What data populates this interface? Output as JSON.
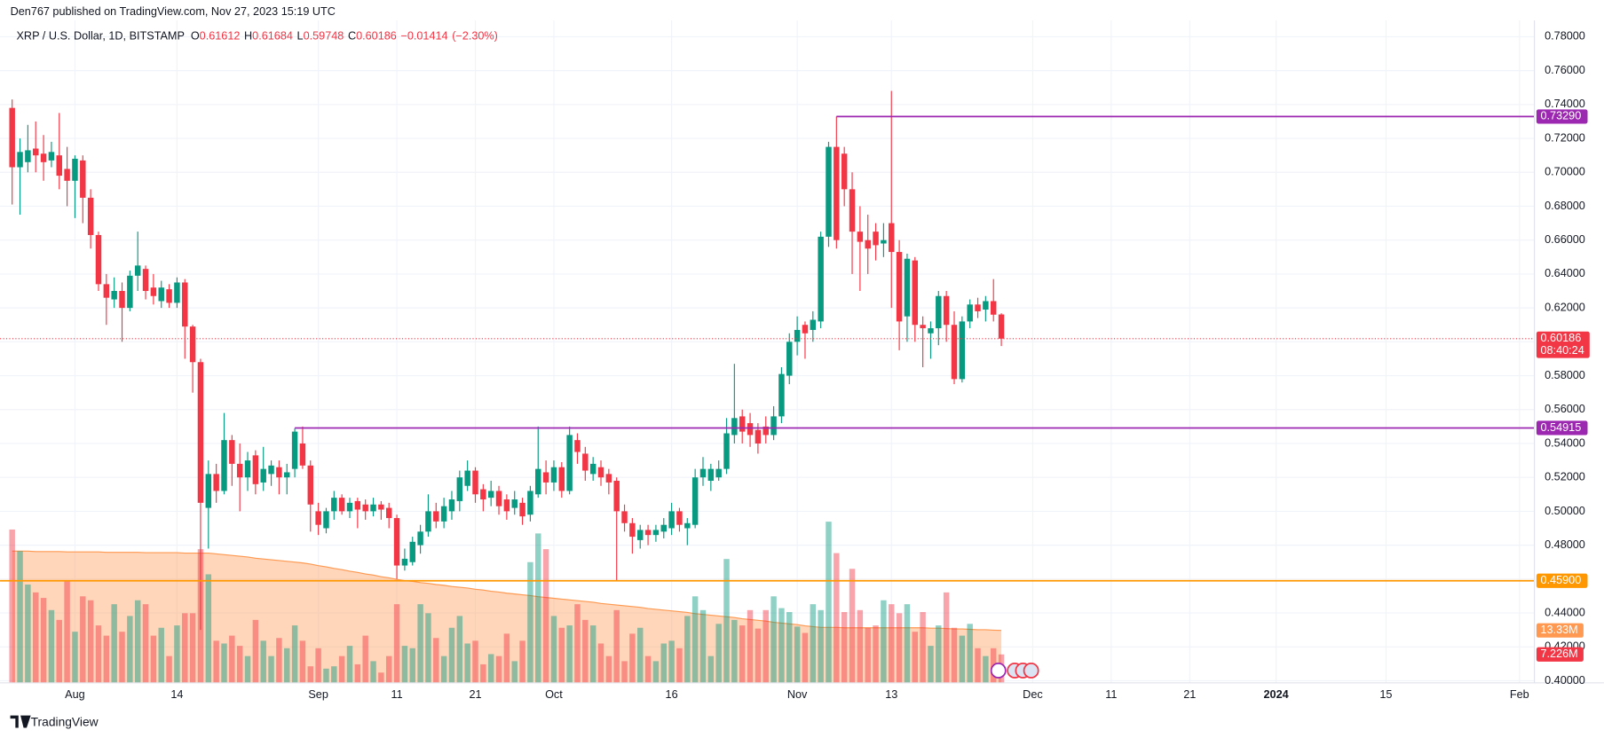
{
  "header": "Den767 published on TradingView.com, Nov 27, 2023 15:19 UTC",
  "footer": "TradingView",
  "chart_data": {
    "type": "candlestick",
    "title": "XRP / U.S. Dollar, 1D, BITSTAMP",
    "legend": {
      "open_label": "O",
      "high_label": "H",
      "low_label": "L",
      "close_label": "C",
      "change": "−0.01414",
      "change_percent": "(−2.30%)"
    },
    "up_color": "#089981",
    "down_color": "#f23645",
    "x": [
      205,
      206,
      207,
      208,
      209,
      210,
      211,
      212,
      213,
      214,
      215,
      216,
      217,
      218,
      219,
      220,
      221,
      222,
      223,
      224,
      225,
      226,
      227,
      228,
      229,
      230,
      231,
      232,
      233,
      234,
      235,
      236,
      237,
      238,
      239,
      240,
      241,
      242,
      243,
      244,
      245,
      246,
      247,
      248,
      249,
      250,
      251,
      252,
      253,
      254,
      255,
      256,
      257,
      258,
      259,
      260,
      261,
      262,
      263,
      264,
      265,
      266,
      267,
      268,
      269,
      270,
      271,
      272,
      273,
      274,
      275,
      276,
      277,
      278,
      279,
      280,
      281,
      282,
      283,
      284,
      285,
      286,
      287,
      288,
      289,
      290,
      291,
      292,
      293,
      294,
      295,
      296,
      297,
      298,
      299,
      300,
      301,
      302,
      303,
      304,
      305,
      306,
      307,
      308,
      309,
      310,
      311,
      312,
      313,
      314,
      315,
      316,
      317,
      318,
      319,
      320,
      321,
      322,
      323,
      324,
      325,
      326,
      327,
      328,
      329,
      330,
      331
    ],
    "ohlc": [
      [
        0.738,
        0.743,
        0.681,
        0.703
      ],
      [
        0.703,
        0.72,
        0.675,
        0.712
      ],
      [
        0.706,
        0.728,
        0.7,
        0.713
      ],
      [
        0.714,
        0.73,
        0.7,
        0.71
      ],
      [
        0.711,
        0.722,
        0.695,
        0.706
      ],
      [
        0.707,
        0.718,
        0.703,
        0.712
      ],
      [
        0.71,
        0.735,
        0.69,
        0.698
      ],
      [
        0.702,
        0.715,
        0.68,
        0.695
      ],
      [
        0.695,
        0.71,
        0.673,
        0.708
      ],
      [
        0.707,
        0.71,
        0.67,
        0.685
      ],
      [
        0.685,
        0.69,
        0.655,
        0.663
      ],
      [
        0.663,
        0.665,
        0.63,
        0.634
      ],
      [
        0.634,
        0.64,
        0.61,
        0.626
      ],
      [
        0.625,
        0.638,
        0.62,
        0.63
      ],
      [
        0.63,
        0.635,
        0.6,
        0.62
      ],
      [
        0.62,
        0.642,
        0.618,
        0.639
      ],
      [
        0.639,
        0.665,
        0.63,
        0.645
      ],
      [
        0.643,
        0.645,
        0.625,
        0.63
      ],
      [
        0.632,
        0.64,
        0.622,
        0.627
      ],
      [
        0.624,
        0.636,
        0.62,
        0.632
      ],
      [
        0.631,
        0.634,
        0.62,
        0.623
      ],
      [
        0.623,
        0.638,
        0.62,
        0.635
      ],
      [
        0.635,
        0.637,
        0.59,
        0.609
      ],
      [
        0.609,
        0.61,
        0.57,
        0.588
      ],
      [
        0.588,
        0.59,
        0.43,
        0.505
      ],
      [
        0.502,
        0.53,
        0.478,
        0.522
      ],
      [
        0.522,
        0.528,
        0.505,
        0.512
      ],
      [
        0.512,
        0.558,
        0.51,
        0.542
      ],
      [
        0.542,
        0.545,
        0.515,
        0.528
      ],
      [
        0.528,
        0.54,
        0.5,
        0.52
      ],
      [
        0.52,
        0.535,
        0.512,
        0.53
      ],
      [
        0.533,
        0.536,
        0.51,
        0.516
      ],
      [
        0.517,
        0.538,
        0.512,
        0.525
      ],
      [
        0.522,
        0.53,
        0.515,
        0.527
      ],
      [
        0.526,
        0.53,
        0.51,
        0.52
      ],
      [
        0.52,
        0.528,
        0.51,
        0.523
      ],
      [
        0.525,
        0.549,
        0.52,
        0.547
      ],
      [
        0.54,
        0.55,
        0.525,
        0.527
      ],
      [
        0.527,
        0.53,
        0.488,
        0.504
      ],
      [
        0.5,
        0.505,
        0.486,
        0.492
      ],
      [
        0.49,
        0.502,
        0.487,
        0.5
      ],
      [
        0.5,
        0.512,
        0.495,
        0.508
      ],
      [
        0.508,
        0.51,
        0.498,
        0.5
      ],
      [
        0.5,
        0.508,
        0.496,
        0.505
      ],
      [
        0.506,
        0.508,
        0.49,
        0.501
      ],
      [
        0.504,
        0.507,
        0.495,
        0.5
      ],
      [
        0.5,
        0.508,
        0.497,
        0.504
      ],
      [
        0.504,
        0.506,
        0.495,
        0.501
      ],
      [
        0.502,
        0.505,
        0.49,
        0.496
      ],
      [
        0.496,
        0.498,
        0.46,
        0.468
      ],
      [
        0.468,
        0.478,
        0.465,
        0.472
      ],
      [
        0.47,
        0.485,
        0.468,
        0.482
      ],
      [
        0.48,
        0.492,
        0.475,
        0.488
      ],
      [
        0.488,
        0.51,
        0.485,
        0.5
      ],
      [
        0.5,
        0.505,
        0.49,
        0.494
      ],
      [
        0.494,
        0.508,
        0.49,
        0.503
      ],
      [
        0.5,
        0.512,
        0.495,
        0.507
      ],
      [
        0.506,
        0.524,
        0.5,
        0.52
      ],
      [
        0.515,
        0.53,
        0.512,
        0.524
      ],
      [
        0.524,
        0.526,
        0.505,
        0.51
      ],
      [
        0.513,
        0.516,
        0.5,
        0.507
      ],
      [
        0.508,
        0.518,
        0.503,
        0.512
      ],
      [
        0.512,
        0.515,
        0.498,
        0.503
      ],
      [
        0.507,
        0.51,
        0.495,
        0.5
      ],
      [
        0.502,
        0.512,
        0.498,
        0.507
      ],
      [
        0.505,
        0.508,
        0.492,
        0.497
      ],
      [
        0.498,
        0.515,
        0.494,
        0.512
      ],
      [
        0.51,
        0.55,
        0.508,
        0.525
      ],
      [
        0.523,
        0.53,
        0.51,
        0.517
      ],
      [
        0.517,
        0.53,
        0.512,
        0.526
      ],
      [
        0.526,
        0.529,
        0.508,
        0.512
      ],
      [
        0.512,
        0.55,
        0.51,
        0.545
      ],
      [
        0.542,
        0.546,
        0.528,
        0.535
      ],
      [
        0.534,
        0.538,
        0.518,
        0.524
      ],
      [
        0.522,
        0.532,
        0.518,
        0.528
      ],
      [
        0.526,
        0.53,
        0.515,
        0.52
      ],
      [
        0.522,
        0.525,
        0.51,
        0.517
      ],
      [
        0.518,
        0.52,
        0.459,
        0.5
      ],
      [
        0.5,
        0.504,
        0.488,
        0.493
      ],
      [
        0.493,
        0.496,
        0.475,
        0.485
      ],
      [
        0.483,
        0.492,
        0.478,
        0.489
      ],
      [
        0.489,
        0.492,
        0.48,
        0.486
      ],
      [
        0.486,
        0.492,
        0.482,
        0.489
      ],
      [
        0.488,
        0.496,
        0.484,
        0.492
      ],
      [
        0.49,
        0.505,
        0.486,
        0.5
      ],
      [
        0.5,
        0.502,
        0.488,
        0.492
      ],
      [
        0.49,
        0.496,
        0.48,
        0.493
      ],
      [
        0.492,
        0.525,
        0.49,
        0.52
      ],
      [
        0.52,
        0.532,
        0.515,
        0.525
      ],
      [
        0.518,
        0.528,
        0.512,
        0.525
      ],
      [
        0.52,
        0.53,
        0.518,
        0.525
      ],
      [
        0.525,
        0.555,
        0.522,
        0.546
      ],
      [
        0.545,
        0.587,
        0.54,
        0.555
      ],
      [
        0.556,
        0.56,
        0.54,
        0.547
      ],
      [
        0.552,
        0.558,
        0.538,
        0.545
      ],
      [
        0.548,
        0.552,
        0.534,
        0.54
      ],
      [
        0.55,
        0.556,
        0.54,
        0.545
      ],
      [
        0.545,
        0.562,
        0.542,
        0.556
      ],
      [
        0.556,
        0.585,
        0.552,
        0.581
      ],
      [
        0.58,
        0.605,
        0.575,
        0.6
      ],
      [
        0.6,
        0.615,
        0.592,
        0.607
      ],
      [
        0.61,
        0.612,
        0.59,
        0.605
      ],
      [
        0.607,
        0.618,
        0.6,
        0.613
      ],
      [
        0.612,
        0.665,
        0.608,
        0.662
      ],
      [
        0.662,
        0.718,
        0.656,
        0.715
      ],
      [
        0.715,
        0.733,
        0.655,
        0.66
      ],
      [
        0.711,
        0.715,
        0.68,
        0.69
      ],
      [
        0.69,
        0.7,
        0.64,
        0.665
      ],
      [
        0.665,
        0.68,
        0.63,
        0.659
      ],
      [
        0.66,
        0.675,
        0.64,
        0.655
      ],
      [
        0.665,
        0.67,
        0.648,
        0.657
      ],
      [
        0.658,
        0.67,
        0.65,
        0.66
      ],
      [
        0.67,
        0.748,
        0.62,
        0.653
      ],
      [
        0.653,
        0.66,
        0.595,
        0.612
      ],
      [
        0.615,
        0.652,
        0.6,
        0.649
      ],
      [
        0.648,
        0.65,
        0.6,
        0.61
      ],
      [
        0.61,
        0.615,
        0.585,
        0.608
      ],
      [
        0.605,
        0.612,
        0.59,
        0.608
      ],
      [
        0.608,
        0.63,
        0.598,
        0.627
      ],
      [
        0.627,
        0.63,
        0.6,
        0.61
      ],
      [
        0.61,
        0.618,
        0.575,
        0.578
      ],
      [
        0.578,
        0.615,
        0.576,
        0.612
      ],
      [
        0.612,
        0.625,
        0.608,
        0.622
      ],
      [
        0.622,
        0.626,
        0.614,
        0.618
      ],
      [
        0.619,
        0.627,
        0.612,
        0.624
      ],
      [
        0.624,
        0.637,
        0.612,
        0.616
      ],
      [
        0.61612,
        0.61684,
        0.59748,
        0.60186
      ]
    ],
    "volume": {
      "values": [
        39,
        33.5,
        25,
        23,
        21.6,
        18.5,
        16,
        26,
        13,
        22,
        21,
        14.6,
        12,
        20,
        13,
        17,
        21,
        20,
        12,
        14,
        6.8,
        14.6,
        17.7,
        17.7,
        34,
        27.6,
        10.7,
        10,
        12,
        9.4,
        6.8,
        16,
        10.7,
        6.8,
        11.4,
        8.8,
        14.6,
        10.7,
        4.2,
        8.8,
        3.6,
        4.2,
        6.8,
        9.4,
        4.7,
        12,
        5.5,
        2.6,
        6.8,
        20,
        9.4,
        8.8,
        20,
        17.7,
        11.4,
        6.8,
        14,
        17,
        10,
        10.7,
        4.7,
        7.3,
        6.8,
        12.5,
        5.5,
        10.7,
        30.7,
        38,
        34,
        17,
        14,
        14.6,
        20,
        16,
        14.6,
        10,
        6.8,
        18.5,
        5.5,
        12.5,
        14,
        6.8,
        5.5,
        10,
        10.7,
        8.8,
        17,
        22,
        18.5,
        6.8,
        15,
        31.5,
        16,
        14.6,
        18.5,
        13.8,
        18.5,
        22,
        19,
        18,
        14.3,
        12.7,
        20,
        18.5,
        41,
        33,
        18,
        29,
        18.5,
        14,
        14.6,
        21,
        20,
        17.7,
        20,
        13,
        18,
        9.4,
        14.6,
        23,
        14,
        12,
        15,
        8.8,
        6.8,
        8.8,
        7.226
      ],
      "last_label": "7.226M",
      "label_color": "#f23645"
    },
    "volume_ma": {
      "values": [
        33.5,
        33.5,
        33.5,
        33.4,
        33.4,
        33.4,
        33.4,
        33.3,
        33.3,
        33.3,
        33.3,
        33.3,
        33.2,
        33.2,
        33.2,
        33.2,
        33.2,
        33.1,
        33.1,
        33.1,
        33.1,
        33.1,
        33.0,
        33.0,
        33.0,
        33.0,
        32.8,
        32.6,
        32.4,
        32.2,
        32.0,
        31.7,
        31.5,
        31.3,
        31.1,
        30.9,
        30.7,
        30.5,
        30.2,
        29.8,
        29.5,
        29.1,
        28.8,
        28.4,
        28.1,
        27.7,
        27.4,
        27.0,
        26.7,
        26.3,
        26.0,
        25.8,
        25.5,
        25.3,
        25.0,
        24.8,
        24.5,
        24.3,
        24.1,
        23.8,
        23.6,
        23.3,
        23.1,
        22.8,
        22.6,
        22.4,
        22.2,
        21.9,
        21.7,
        21.5,
        21.3,
        21.1,
        20.9,
        20.7,
        20.5,
        20.2,
        20.0,
        19.8,
        19.6,
        19.4,
        19.2,
        18.9,
        18.7,
        18.5,
        18.3,
        18.1,
        17.9,
        17.6,
        17.4,
        17.2,
        17.0,
        16.8,
        16.6,
        16.3,
        16.1,
        15.9,
        15.7,
        15.4,
        15.2,
        15.0,
        14.8,
        14.5,
        14.3,
        14.1,
        14.1,
        14.1,
        14.0,
        14.0,
        14.0,
        14.0,
        14.0,
        14.0,
        14.0,
        14.0,
        14.0,
        14.0,
        14.0,
        13.9,
        13.9,
        13.8,
        13.7,
        13.7,
        13.6,
        13.5,
        13.5,
        13.4,
        13.33
      ],
      "color": "#ff9850",
      "last_label": "13.33M"
    },
    "xlim": [
      204.5,
      398.9
    ],
    "xticks": [
      {
        "value": 213,
        "label": "Aug"
      },
      {
        "value": 226,
        "label": "14"
      },
      {
        "value": 244,
        "label": "Sep"
      },
      {
        "value": 254,
        "label": "11"
      },
      {
        "value": 264,
        "label": "21"
      },
      {
        "value": 274,
        "label": "Oct"
      },
      {
        "value": 289,
        "label": "16"
      },
      {
        "value": 305,
        "label": "Nov"
      },
      {
        "value": 317,
        "label": "13"
      },
      {
        "value": 335,
        "label": "Dec"
      },
      {
        "value": 345,
        "label": "11"
      },
      {
        "value": 355,
        "label": "21"
      },
      {
        "value": 366,
        "label": "2024",
        "bold": true
      },
      {
        "value": 380,
        "label": "15"
      },
      {
        "value": 397,
        "label": "Feb"
      }
    ],
    "ylim": [
      0.3988,
      0.7884
    ],
    "yticks": [
      {
        "value": 0.4,
        "label": "0.40000"
      },
      {
        "value": 0.42,
        "label": "0.42000"
      },
      {
        "value": 0.44,
        "label": "0.44000"
      },
      {
        "value": 0.46,
        "label": "0.46000"
      },
      {
        "value": 0.48,
        "label": "0.48000"
      },
      {
        "value": 0.5,
        "label": "0.50000"
      },
      {
        "value": 0.52,
        "label": "0.52000"
      },
      {
        "value": 0.54,
        "label": "0.54000"
      },
      {
        "value": 0.56,
        "label": "0.56000"
      },
      {
        "value": 0.58,
        "label": "0.58000"
      },
      {
        "value": 0.6,
        "label": "0.60000"
      },
      {
        "value": 0.62,
        "label": "0.62000"
      },
      {
        "value": 0.64,
        "label": "0.64000"
      },
      {
        "value": 0.66,
        "label": "0.66000"
      },
      {
        "value": 0.68,
        "label": "0.68000"
      },
      {
        "value": 0.7,
        "label": "0.70000"
      },
      {
        "value": 0.72,
        "label": "0.72000"
      },
      {
        "value": 0.74,
        "label": "0.74000"
      },
      {
        "value": 0.76,
        "label": "0.76000"
      },
      {
        "value": 0.78,
        "label": "0.78000"
      }
    ],
    "y2lim": [
      0,
      168
    ],
    "grid": true,
    "levels": [
      {
        "value": 0.7329,
        "label": "0.73290",
        "from": 310,
        "color": "#9c27b0"
      },
      {
        "value": 0.54915,
        "label": "0.54915",
        "from": 241,
        "color": "#9c27b0"
      },
      {
        "value": 0.459,
        "label": "0.45900",
        "color": "#ff9800"
      }
    ],
    "last_price": {
      "value": 0.60186,
      "label": "0.60186",
      "countdown": "08:40:24",
      "color": "#f23645"
    }
  }
}
